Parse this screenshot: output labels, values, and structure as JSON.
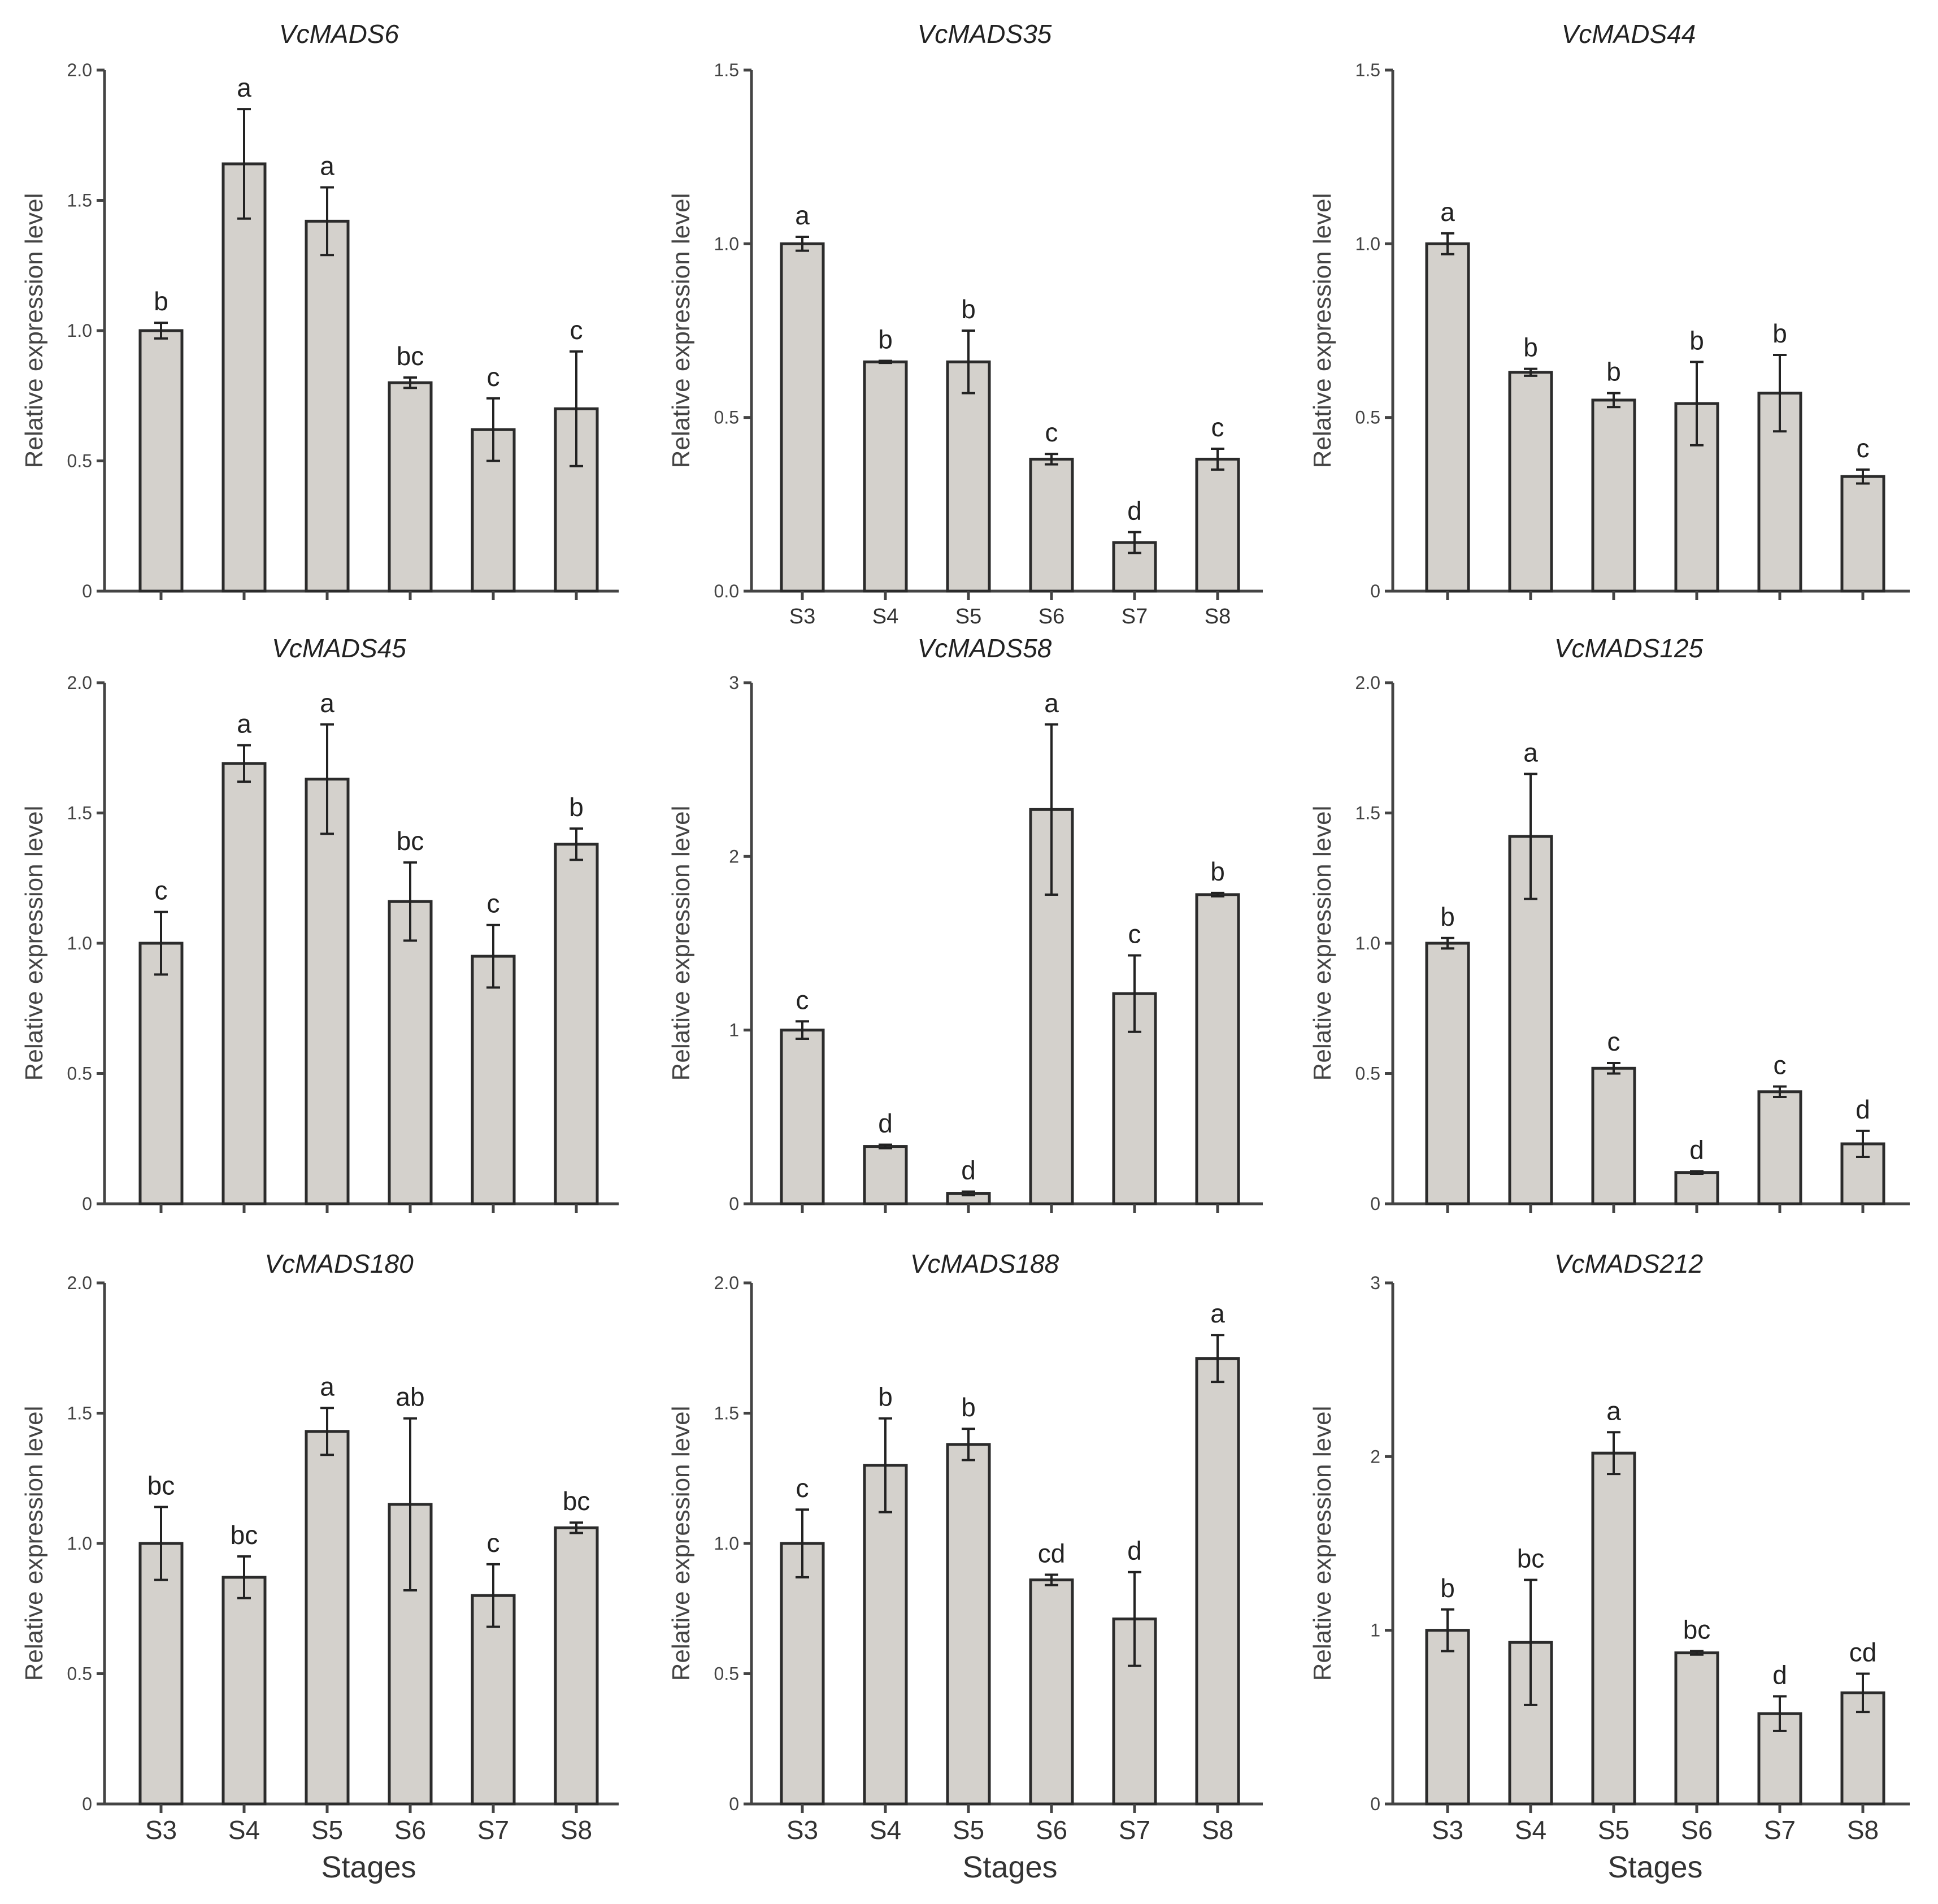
{
  "y_axis_label": "Relative expression level",
  "x_axis_label": "Stages",
  "chart_data": [
    {
      "type": "bar",
      "title": "VcMADS6",
      "categories": [
        "S3",
        "S4",
        "S5",
        "S6",
        "S7",
        "S8"
      ],
      "show_categories": false,
      "show_xlabel": false,
      "ylabel": "Relative expression level",
      "ylim": [
        0,
        2.0
      ],
      "yticks": [
        "0",
        "0.5",
        "1.0",
        "1.5",
        "2.0"
      ],
      "values": [
        1.0,
        1.64,
        1.42,
        0.8,
        0.62,
        0.7
      ],
      "errors": [
        0.03,
        0.21,
        0.13,
        0.02,
        0.12,
        0.22
      ],
      "letters": [
        "b",
        "a",
        "a",
        "bc",
        "c",
        "c"
      ]
    },
    {
      "type": "bar",
      "title": "VcMADS35",
      "categories": [
        "S3",
        "S4",
        "S5",
        "S6",
        "S7",
        "S8"
      ],
      "show_categories": true,
      "small_categories": true,
      "show_xlabel": false,
      "ylabel": "Relative expression level",
      "ylim": [
        0,
        1.5
      ],
      "yticks": [
        "0.0",
        "0.5",
        "1.0",
        "1.5"
      ],
      "values": [
        1.0,
        0.66,
        0.66,
        0.38,
        0.14,
        0.38
      ],
      "errors": [
        0.02,
        0.003,
        0.09,
        0.015,
        0.03,
        0.03
      ],
      "letters": [
        "a",
        "b",
        "b",
        "c",
        "d",
        "c"
      ]
    },
    {
      "type": "bar",
      "title": "VcMADS44",
      "categories": [
        "S3",
        "S4",
        "S5",
        "S6",
        "S7",
        "S8"
      ],
      "show_categories": false,
      "show_xlabel": false,
      "ylabel": "Relative expression level",
      "ylim": [
        0,
        1.5
      ],
      "yticks": [
        "0",
        "0.5",
        "1.0",
        "1.5"
      ],
      "values": [
        1.0,
        0.63,
        0.55,
        0.54,
        0.57,
        0.33
      ],
      "errors": [
        0.03,
        0.01,
        0.02,
        0.12,
        0.11,
        0.02
      ],
      "letters": [
        "a",
        "b",
        "b",
        "b",
        "b",
        "c"
      ]
    },
    {
      "type": "bar",
      "title": "VcMADS45",
      "categories": [
        "S3",
        "S4",
        "S5",
        "S6",
        "S7",
        "S8"
      ],
      "show_categories": false,
      "show_xlabel": false,
      "ylabel": "Relative expression level",
      "ylim": [
        0,
        2.0
      ],
      "yticks": [
        "0",
        "0.5",
        "1.0",
        "1.5",
        "2.0"
      ],
      "values": [
        1.0,
        1.69,
        1.63,
        1.16,
        0.95,
        1.38
      ],
      "errors": [
        0.12,
        0.07,
        0.21,
        0.15,
        0.12,
        0.06
      ],
      "letters": [
        "c",
        "a",
        "a",
        "bc",
        "c",
        "b"
      ]
    },
    {
      "type": "bar",
      "title": "VcMADS58",
      "categories": [
        "S3",
        "S4",
        "S5",
        "S6",
        "S7",
        "S8"
      ],
      "show_categories": false,
      "show_xlabel": false,
      "ylabel": "Relative expression level",
      "ylim": [
        0,
        3
      ],
      "yticks": [
        "0",
        "1",
        "2",
        "3"
      ],
      "values": [
        1.0,
        0.33,
        0.06,
        2.27,
        1.21,
        1.78
      ],
      "errors": [
        0.05,
        0.01,
        0.01,
        0.49,
        0.22,
        0.01
      ],
      "letters": [
        "c",
        "d",
        "d",
        "a",
        "c",
        "b"
      ]
    },
    {
      "type": "bar",
      "title": "VcMADS125",
      "categories": [
        "S3",
        "S4",
        "S5",
        "S6",
        "S7",
        "S8"
      ],
      "show_categories": false,
      "show_xlabel": false,
      "ylabel": "Relative expression level",
      "ylim": [
        0,
        2.0
      ],
      "yticks": [
        "0",
        "0.5",
        "1.0",
        "1.5",
        "2.0"
      ],
      "values": [
        1.0,
        1.41,
        0.52,
        0.12,
        0.43,
        0.23
      ],
      "errors": [
        0.02,
        0.24,
        0.02,
        0.005,
        0.02,
        0.05
      ],
      "letters": [
        "b",
        "a",
        "c",
        "d",
        "c",
        "d"
      ]
    },
    {
      "type": "bar",
      "title": "VcMADS180",
      "categories": [
        "S3",
        "S4",
        "S5",
        "S6",
        "S7",
        "S8"
      ],
      "show_categories": true,
      "show_xlabel": true,
      "ylabel": "Relative expression level",
      "ylim": [
        0,
        2.0
      ],
      "yticks": [
        "0",
        "0.5",
        "1.0",
        "1.5",
        "2.0"
      ],
      "values": [
        1.0,
        0.87,
        1.43,
        1.15,
        0.8,
        1.06
      ],
      "errors": [
        0.14,
        0.08,
        0.09,
        0.33,
        0.12,
        0.02
      ],
      "letters": [
        "bc",
        "bc",
        "a",
        "ab",
        "c",
        "bc"
      ]
    },
    {
      "type": "bar",
      "title": "VcMADS188",
      "categories": [
        "S3",
        "S4",
        "S5",
        "S6",
        "S7",
        "S8"
      ],
      "show_categories": true,
      "show_xlabel": true,
      "ylabel": "Relative expression level",
      "ylim": [
        0,
        2.0
      ],
      "yticks": [
        "0",
        "0.5",
        "1.0",
        "1.5",
        "2.0"
      ],
      "values": [
        1.0,
        1.3,
        1.38,
        0.86,
        0.71,
        1.71
      ],
      "errors": [
        0.13,
        0.18,
        0.06,
        0.02,
        0.18,
        0.09
      ],
      "letters": [
        "c",
        "b",
        "b",
        "cd",
        "d",
        "a"
      ]
    },
    {
      "type": "bar",
      "title": "VcMADS212",
      "categories": [
        "S3",
        "S4",
        "S5",
        "S6",
        "S7",
        "S8"
      ],
      "show_categories": true,
      "show_xlabel": true,
      "ylabel": "Relative expression level",
      "ylim": [
        0,
        3
      ],
      "yticks": [
        "0",
        "1",
        "2",
        "3"
      ],
      "values": [
        1.0,
        0.93,
        2.02,
        0.87,
        0.52,
        0.64
      ],
      "errors": [
        0.12,
        0.36,
        0.12,
        0.01,
        0.1,
        0.11
      ],
      "letters": [
        "b",
        "bc",
        "a",
        "bc",
        "d",
        "cd"
      ]
    }
  ]
}
